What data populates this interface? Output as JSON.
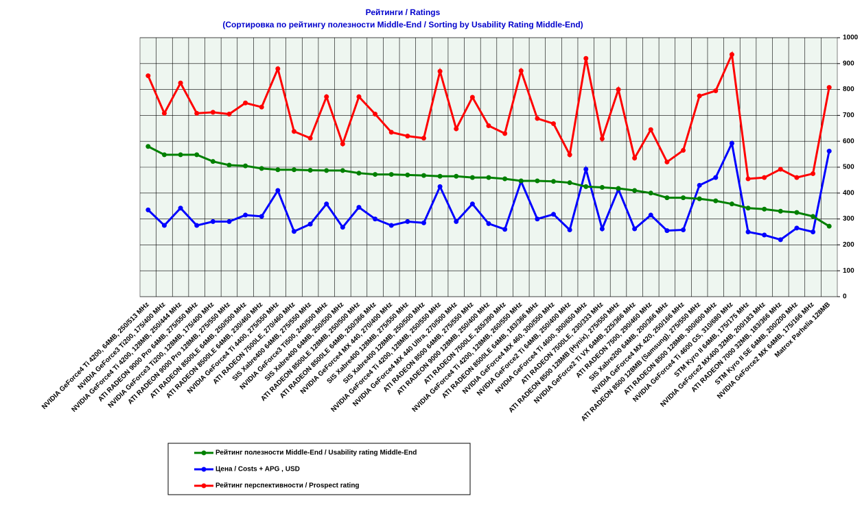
{
  "chart_data": {
    "type": "line",
    "title": "Рейтинги / Ratings",
    "subtitle": "(Сортировка по рейтингу полезности Middle-End / Sorting by Usability Rating Middle-End)",
    "categories": [
      "NVIDIA GeForce4 Ti 4200, 64MB, 250/513 MHz",
      "NVIDIA GeForce3 Ti200, 175/400 MHz",
      "NVIDIA GeForce4 Ti 4200, 128MB, 250/444 MHz",
      "ATI RADEON 9000 Pro 64MB, 275/550 MHz",
      "NVIDIA GeForce3 Ti200, 128MB, 175/400 MHz",
      "ATI RADEON 9000 Pro 128MB, 275/550 MHz",
      "ATI RADEON 8500LE 64MB, 250/500 MHz",
      "ATI RADEON 8500LE 64MB, 230/460 MHz",
      "NVIDIA GeForce4 Ti 4400, 275/550 MHz",
      "ATI RADEON 7500LE, 270/460 MHz",
      "SIS Xabre400 64MB, 275/550 MHz",
      "NVIDIA GeForce3 Ti500, 240/500 MHz",
      "SIS Xabre400 64MB, 250/500 MHz",
      "ATI RADEON 8500LE 128MB, 250/500 MHz",
      "ATI RADEON 8500LE 64MB, 250/366 MHz",
      "NVIDIA GeForce4 MX 440, 270/400 MHz",
      "SIS Xabre400 128MB, 275/550 MHz",
      "SIS Xabre400 128MB, 250/500 MHz",
      "NVIDIA GeForce4 Ti 4200, 128MB, 250/550 MHz",
      "NVIDIA GeForce4 MX 440 Ultra, 270/500 MHz",
      "ATI RADEON 8500 64MB, 275/550 MHz",
      "ATI RADEON 9000 128MB, 250/400 MHz",
      "ATI RADEON 7500LE, 265/390 MHz",
      "NVIDIA GeForce4 Ti 4200, 128MB, 260/550 MHz",
      "ATI RADEON 8500LE 64MB, 183/366 MHz",
      "NVIDIA GeForce4 MX 460, 300/550 MHz",
      "NVIDIA GeForce2 Ti 64MB, 250/400 MHz",
      "NVIDIA GeForce4 Ti 4600, 300/650 MHz",
      "ATI RADEON 7500LE, 230/333 MHz",
      "ATI RADEON 8500 128MB (Hynix), 275/550 MHz",
      "NVIDIA GeForce2 Ti VX 64MB, 225/366 MHz",
      "ATI RADEON 7500, 290/460 MHz",
      "SIS Xabre200 64MB, 200/366 MHz",
      "NVIDIA GeForce4 MX 420, 250/166 MHz",
      "ATI RADEON 8500 128MB (Samsung), 275/550 MHz",
      "ATI RADEON 8500 128MB, 300/600 MHz",
      "NVIDIA GeForce4 Ti 4600 GS, 310/680 MHz",
      "STM Kyro II 64MB, 175/175 MHz",
      "NVIDIA GeForce2 MX400 32MB, 200/183 MHz",
      "ATI RADEON 7000 32MB, 183/366 MHz",
      "STM Kyro II SE 64MB, 200/200 MHz",
      "NVIDIA GeForce2 MX 64MB, 175/166 MHz",
      "Matrox Parhelia 128MB"
    ],
    "series": [
      {
        "name": "Рейтинг полезности Middle-End / Usability rating Middle-End",
        "color": "#008000",
        "values": [
          580,
          548,
          548,
          548,
          522,
          508,
          505,
          495,
          490,
          490,
          488,
          487,
          487,
          477,
          472,
          472,
          470,
          468,
          465,
          465,
          460,
          460,
          455,
          447,
          447,
          445,
          440,
          425,
          422,
          418,
          410,
          400,
          382,
          382,
          378,
          370,
          358,
          342,
          338,
          330,
          325,
          310,
          272
        ]
      },
      {
        "name": "Цена / Costs + APG , USD",
        "color": "#0000ff",
        "values": [
          335,
          275,
          342,
          275,
          290,
          290,
          315,
          310,
          410,
          252,
          280,
          358,
          268,
          345,
          300,
          275,
          290,
          285,
          425,
          290,
          358,
          282,
          260,
          445,
          300,
          318,
          258,
          492,
          262,
          415,
          262,
          315,
          255,
          258,
          430,
          460,
          592,
          250,
          238,
          220,
          265,
          250,
          562
        ]
      },
      {
        "name": "Рейтинг перспективности / Prospect rating",
        "color": "#ff0000",
        "values": [
          853,
          708,
          825,
          708,
          712,
          705,
          748,
          732,
          880,
          638,
          612,
          772,
          590,
          772,
          705,
          635,
          620,
          612,
          870,
          648,
          770,
          660,
          630,
          872,
          688,
          668,
          548,
          920,
          610,
          800,
          535,
          645,
          520,
          565,
          775,
          795,
          935,
          455,
          460,
          492,
          460,
          475,
          808
        ]
      }
    ],
    "ylim": [
      0,
      1000
    ],
    "yticks": [
      0,
      100,
      200,
      300,
      400,
      500,
      600,
      700,
      800,
      900,
      1000
    ],
    "grid": true
  }
}
